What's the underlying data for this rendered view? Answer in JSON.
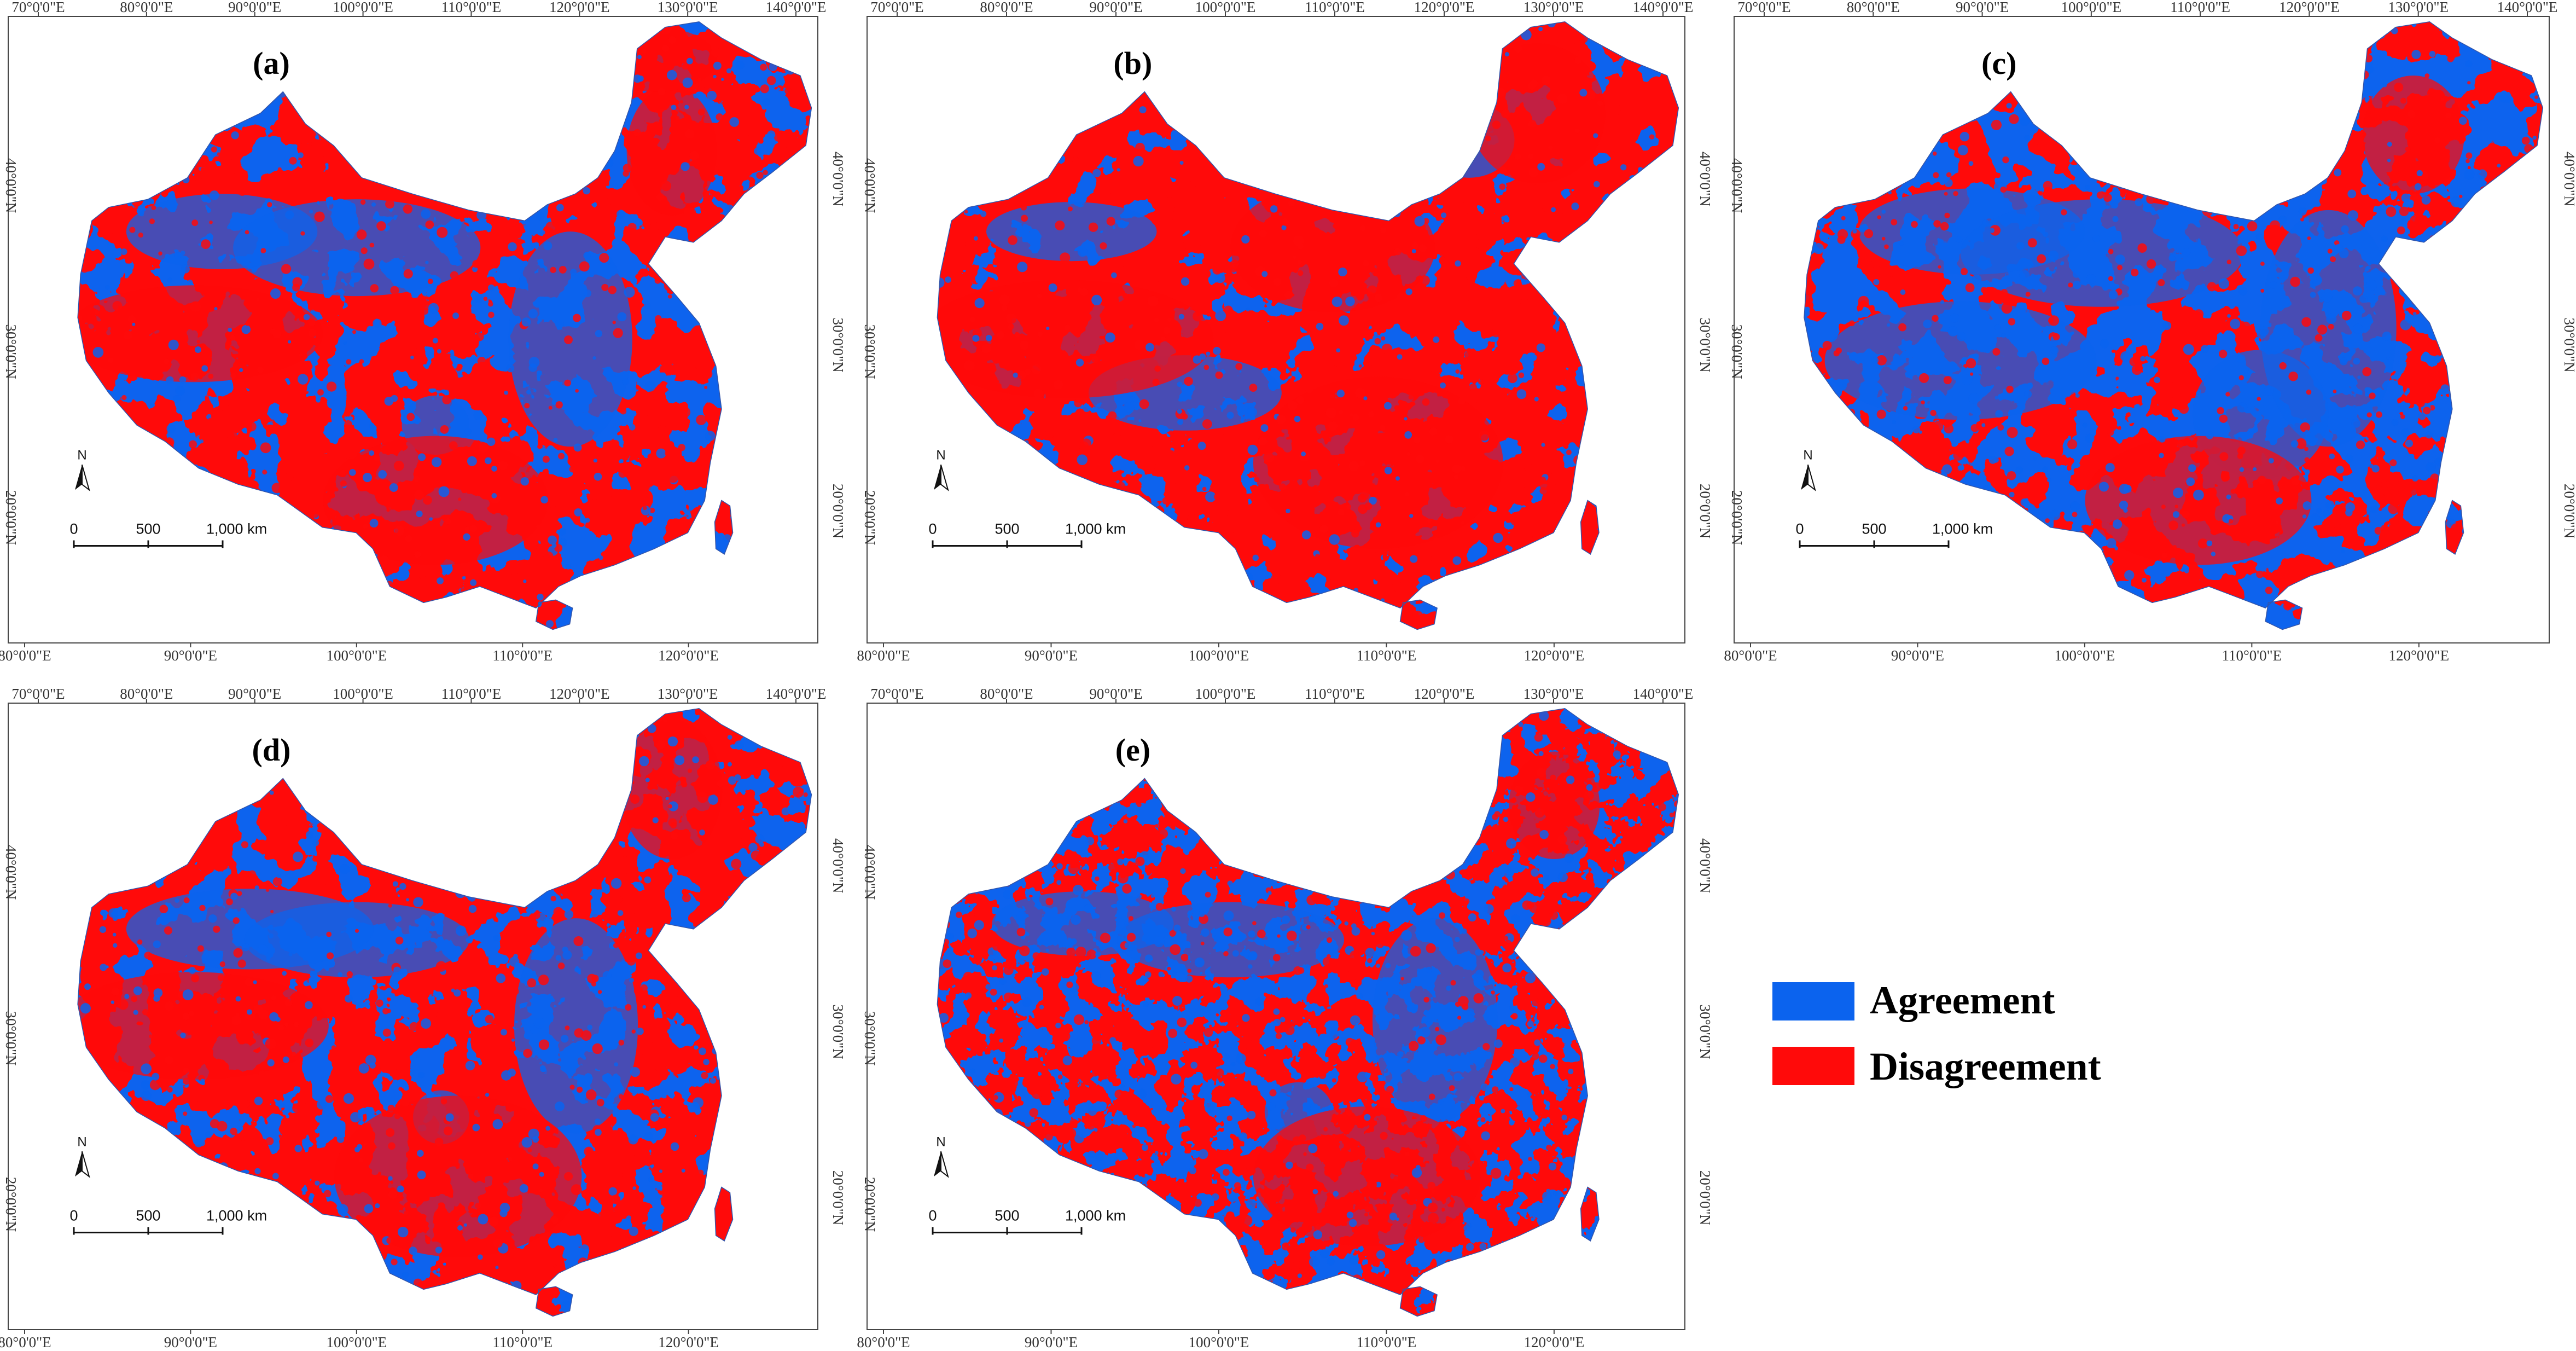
{
  "colors": {
    "agreement": "#0b63ee",
    "disagreement": "#ff0a0a",
    "frame": "#444444"
  },
  "top_lon_ticks": [
    "70°0'0\"E",
    "80°0'0\"E",
    "90°0'0\"E",
    "100°0'0\"E",
    "110°0'0\"E",
    "120°0'0\"E",
    "130°0'0\"E",
    "140°0'0\"E"
  ],
  "bottom_lon_ticks": [
    "80°0'0\"E",
    "90°0'0\"E",
    "100°0'0\"E",
    "110°0'0\"E",
    "120°0'0\"E"
  ],
  "lat_ticks": [
    "40°0'0\"N",
    "30°0'0\"N",
    "20°0'0\"N"
  ],
  "scale_bar": {
    "zero": "0",
    "mid": "500",
    "end": "1,000 km"
  },
  "north_label": "N",
  "panels": [
    {
      "id": "a",
      "label": "(a)",
      "agreement_share": 0.4
    },
    {
      "id": "b",
      "label": "(b)",
      "agreement_share": 0.3
    },
    {
      "id": "c",
      "label": "(c)",
      "agreement_share": 0.52
    },
    {
      "id": "d",
      "label": "(d)",
      "agreement_share": 0.42
    },
    {
      "id": "e",
      "label": "(e)",
      "agreement_share": 0.45
    }
  ],
  "legend": {
    "agreement": {
      "label": "Agreement",
      "color": "#0b63ee"
    },
    "disagreement": {
      "label": "Disagreement",
      "color": "#ff0a0a"
    }
  }
}
